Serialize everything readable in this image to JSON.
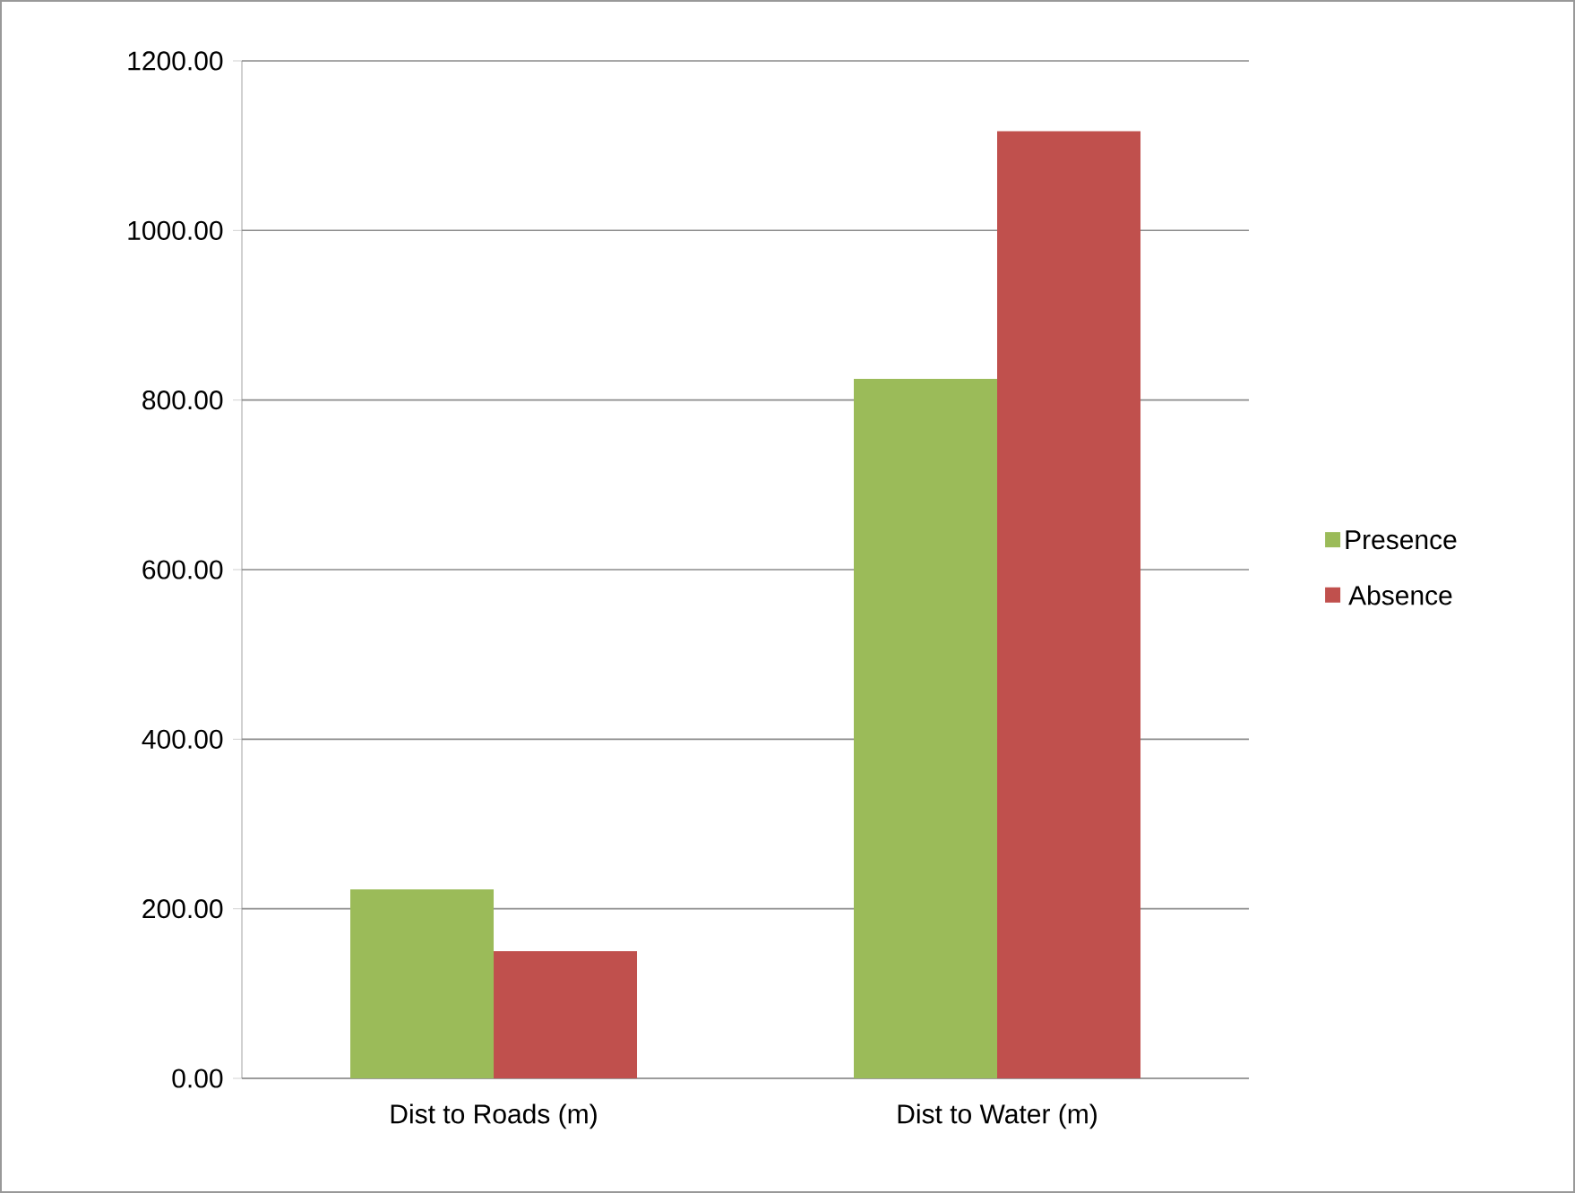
{
  "chart_data": {
    "type": "bar",
    "categories": [
      "Dist to Roads (m)",
      "Dist to Water (m)"
    ],
    "series": [
      {
        "name": "Presence",
        "color": "#9bbb59",
        "values": [
          223,
          825
        ]
      },
      {
        "name": "Absence",
        "color": "#c0504d",
        "values": [
          150,
          1117
        ]
      }
    ],
    "ylim": [
      0,
      1200
    ],
    "yticks": [
      {
        "value": 0,
        "label": "0.00"
      },
      {
        "value": 200,
        "label": "200.00"
      },
      {
        "value": 400,
        "label": "400.00"
      },
      {
        "value": 600,
        "label": "600.00"
      },
      {
        "value": 800,
        "label": "800.00"
      },
      {
        "value": 1000,
        "label": "1000.00"
      },
      {
        "value": 1200,
        "label": "1200.00"
      }
    ],
    "grid": "y",
    "legend": "right"
  }
}
